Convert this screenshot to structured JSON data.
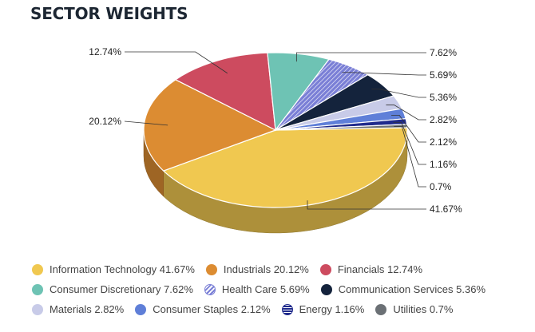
{
  "title": "SECTOR WEIGHTS",
  "chart_data": {
    "type": "pie",
    "title": "SECTOR WEIGHTS",
    "categories": [
      "Information Technology",
      "Industrials",
      "Financials",
      "Consumer Discretionary",
      "Health Care",
      "Communication Services",
      "Materials",
      "Consumer Staples",
      "Energy",
      "Utilities"
    ],
    "values": [
      41.67,
      20.12,
      12.74,
      7.62,
      5.69,
      5.36,
      2.82,
      2.12,
      1.16,
      0.7
    ],
    "value_labels": [
      "41.67%",
      "20.12%",
      "12.74%",
      "7.62%",
      "5.69%",
      "5.36%",
      "2.82%",
      "2.12%",
      "1.16%",
      "0.7%"
    ],
    "colors": [
      "#f0c850",
      "#dc8c32",
      "#cd4b5f",
      "#6ec3b4",
      "#7a7fd6",
      "#14233c",
      "#c8cbe8",
      "#5f7fd8",
      "#1f2a8c",
      "#6b7075"
    ],
    "legend_placement": "bottom",
    "three_d": true
  },
  "legend": {
    "rows": [
      [
        {
          "label": "Information Technology 41.67%",
          "color": "#f0c850"
        },
        {
          "label": "Industrials 20.12%",
          "color": "#dc8c32"
        },
        {
          "label": "Financials 12.74%",
          "color": "#cd4b5f"
        }
      ],
      [
        {
          "label": "Consumer Discretionary 7.62%",
          "color": "#6ec3b4"
        },
        {
          "label": "Health Care 5.69%",
          "color": "#7a7fd6"
        },
        {
          "label": "Communication Services 5.36%",
          "color": "#14233c"
        }
      ],
      [
        {
          "label": "Materials 2.82%",
          "color": "#c8cbe8"
        },
        {
          "label": "Consumer Staples 2.12%",
          "color": "#5f7fd8"
        },
        {
          "label": "Energy 1.16%",
          "color": "#1f2a8c"
        },
        {
          "label": "Utilities 0.7%",
          "color": "#6b7075"
        }
      ]
    ]
  }
}
